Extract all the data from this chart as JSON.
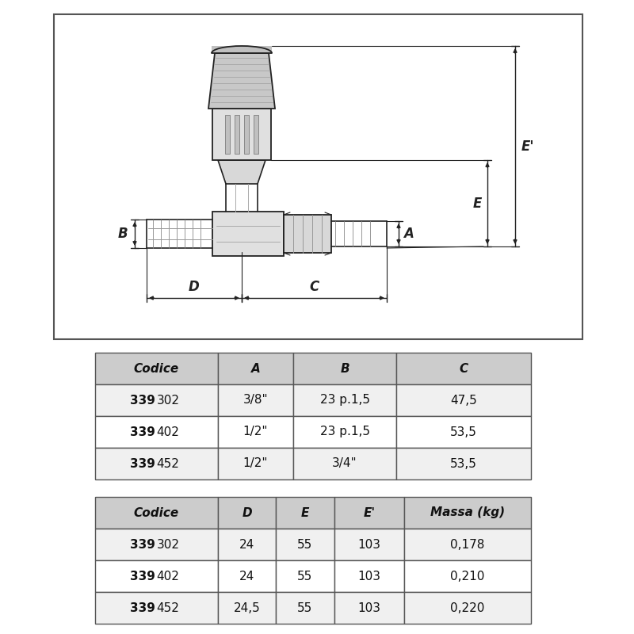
{
  "bg_color": "#ffffff",
  "table1": {
    "headers": [
      "Codice",
      "A",
      "B",
      "C"
    ],
    "rows": [
      [
        "339302",
        "3/8\"",
        "23 p.1,5",
        "47,5"
      ],
      [
        "339402",
        "1/2\"",
        "23 p.1,5",
        "53,5"
      ],
      [
        "339452",
        "1/2\"",
        "3/4\"",
        "53,5"
      ]
    ]
  },
  "table2": {
    "headers": [
      "Codice",
      "D",
      "E",
      "E'",
      "Massa (kg)"
    ],
    "rows": [
      [
        "339302",
        "24",
        "55",
        "103",
        "0,178"
      ],
      [
        "339402",
        "24",
        "55",
        "103",
        "0,210"
      ],
      [
        "339452",
        "24,5",
        "55",
        "103",
        "0,220"
      ]
    ]
  },
  "line_color": "#222222",
  "header_bg": "#cccccc",
  "row_bg_even": "#f0f0f0",
  "row_bg_odd": "#ffffff",
  "border_color": "#555555"
}
